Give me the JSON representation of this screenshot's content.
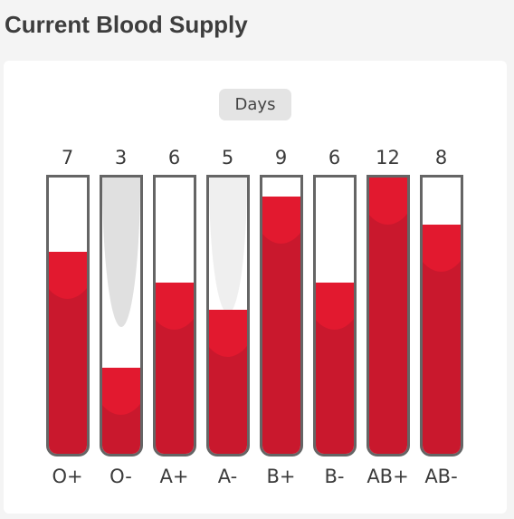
{
  "page": {
    "title": "Current Blood Supply",
    "range_button": "Days"
  },
  "colors": {
    "blood": "#c9182d",
    "blood_highlight": "#e2192f",
    "tube_border": "#656565"
  },
  "blood_types": [
    {
      "type": "O+",
      "days": "7",
      "fill_fraction": 0.73
    },
    {
      "type": "O-",
      "days": "3",
      "fill_fraction": 0.31
    },
    {
      "type": "A+",
      "days": "6",
      "fill_fraction": 0.62
    },
    {
      "type": "A-",
      "days": "5",
      "fill_fraction": 0.52
    },
    {
      "type": "B+",
      "days": "9",
      "fill_fraction": 0.93
    },
    {
      "type": "B-",
      "days": "6",
      "fill_fraction": 0.62
    },
    {
      "type": "AB+",
      "days": "12",
      "fill_fraction": 1.0
    },
    {
      "type": "AB-",
      "days": "8",
      "fill_fraction": 0.83
    }
  ]
}
